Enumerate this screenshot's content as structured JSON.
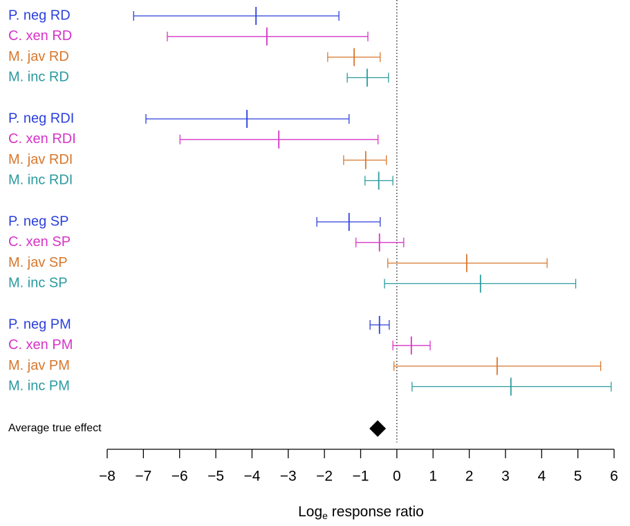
{
  "chart_data": {
    "type": "forest",
    "groups": [
      [
        {
          "label": "P. neg RD",
          "color": "#2b3fdc",
          "value": -3.89,
          "lower": -7.27,
          "upper": -1.6
        },
        {
          "label": "C. xen RD",
          "color": "#d633c7",
          "value": -3.59,
          "lower": -6.34,
          "upper": -0.8
        },
        {
          "label": "M. jav RD",
          "color": "#d8772c",
          "value": -1.18,
          "lower": -1.91,
          "upper": -0.46
        },
        {
          "label": "M. inc RD",
          "color": "#2a9aa0",
          "value": -0.82,
          "lower": -1.37,
          "upper": -0.23
        }
      ],
      [
        {
          "label": "P. neg RDI",
          "color": "#2b3fdc",
          "value": -4.14,
          "lower": -6.93,
          "upper": -1.32
        },
        {
          "label": "C. xen RDI",
          "color": "#d633c7",
          "value": -3.26,
          "lower": -5.99,
          "upper": -0.52
        },
        {
          "label": "M. jav RDI",
          "color": "#d8772c",
          "value": -0.86,
          "lower": -1.47,
          "upper": -0.29
        },
        {
          "label": "M. inc RDI",
          "color": "#2a9aa0",
          "value": -0.5,
          "lower": -0.88,
          "upper": -0.11
        }
      ],
      [
        {
          "label": "P. neg SP",
          "color": "#2b3fdc",
          "value": -1.32,
          "lower": -2.21,
          "upper": -0.46
        },
        {
          "label": "C. xen SP",
          "color": "#d633c7",
          "value": -0.48,
          "lower": -1.13,
          "upper": 0.19
        },
        {
          "label": "M. jav SP",
          "color": "#d8772c",
          "value": 1.93,
          "lower": -0.25,
          "upper": 4.15
        },
        {
          "label": "M. inc SP",
          "color": "#2a9aa0",
          "value": 2.31,
          "lower": -0.34,
          "upper": 4.94
        }
      ],
      [
        {
          "label": "P. neg PM",
          "color": "#2b3fdc",
          "value": -0.48,
          "lower": -0.74,
          "upper": -0.21
        },
        {
          "label": "C. xen PM",
          "color": "#d633c7",
          "value": 0.4,
          "lower": -0.11,
          "upper": 0.92
        },
        {
          "label": "M. jav PM",
          "color": "#d8772c",
          "value": 2.77,
          "lower": -0.08,
          "upper": 5.63
        },
        {
          "label": "M. inc PM",
          "color": "#2a9aa0",
          "value": 3.15,
          "lower": 0.42,
          "upper": 5.92
        }
      ]
    ],
    "average": {
      "label": "Average true effect",
      "value": -0.53,
      "color": "#000000"
    },
    "xlabel": [
      "Log",
      "e",
      " response ratio"
    ],
    "xlim": [
      -8,
      6
    ],
    "xticks": [
      {
        "value": -8,
        "label": "−8"
      },
      {
        "value": -7,
        "label": "−7"
      },
      {
        "value": -6,
        "label": "−6"
      },
      {
        "value": -5,
        "label": "−5"
      },
      {
        "value": -4,
        "label": "−4"
      },
      {
        "value": -3,
        "label": "−3"
      },
      {
        "value": -2,
        "label": "−2"
      },
      {
        "value": -1,
        "label": "−1"
      },
      0,
      1,
      2,
      3,
      4,
      5,
      6
    ]
  }
}
